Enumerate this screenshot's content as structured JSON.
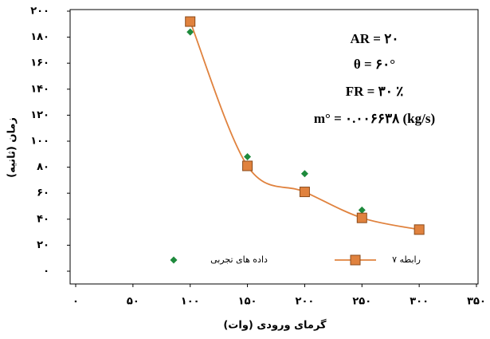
{
  "chart_data": {
    "type": "line",
    "x_label": "گرمای ورودی (وات)",
    "y_label": "زمان (ثانیه)",
    "annotations": [
      "AR = ٢٠",
      "θ = ۶٠°",
      "FR = ٣٠ ٪",
      "m° =  ٠.٠٠۶۶٣٨ (kg/s)"
    ],
    "xlim": [
      0,
      350
    ],
    "ylim": [
      0,
      200
    ],
    "xticks": [
      {
        "value": 0,
        "label": "٠"
      },
      {
        "value": 50,
        "label": "۵٠"
      },
      {
        "value": 100,
        "label": "١٠٠"
      },
      {
        "value": 150,
        "label": "١۵٠"
      },
      {
        "value": 200,
        "label": "٢٠٠"
      },
      {
        "value": 250,
        "label": "٢۵٠"
      },
      {
        "value": 300,
        "label": "٣٠٠"
      },
      {
        "value": 350,
        "label": "٣۵٠"
      }
    ],
    "yticks": [
      {
        "value": 0,
        "label": "٠"
      },
      {
        "value": 20,
        "label": "٢٠"
      },
      {
        "value": 40,
        "label": "۴٠"
      },
      {
        "value": 60,
        "label": "۶٠"
      },
      {
        "value": 80,
        "label": "٨٠"
      },
      {
        "value": 100,
        "label": "١٠٠"
      },
      {
        "value": 120,
        "label": "١٢٠"
      },
      {
        "value": 140,
        "label": "١۴٠"
      },
      {
        "value": 160,
        "label": "١۶٠"
      },
      {
        "value": 180,
        "label": "١٨٠"
      },
      {
        "value": 200,
        "label": "٢٠٠"
      }
    ],
    "series": [
      {
        "name": "داده های تجربی",
        "type": "scatter",
        "color": "#1e8a3c",
        "x": [
          100,
          150,
          200,
          250,
          300
        ],
        "values": [
          184,
          88,
          75,
          47,
          33
        ]
      },
      {
        "name": "رابطه ۷",
        "type": "line",
        "color": "#e0823e",
        "x": [
          100,
          150,
          200,
          250,
          300
        ],
        "values": [
          192,
          81,
          61,
          41,
          32
        ]
      }
    ]
  }
}
